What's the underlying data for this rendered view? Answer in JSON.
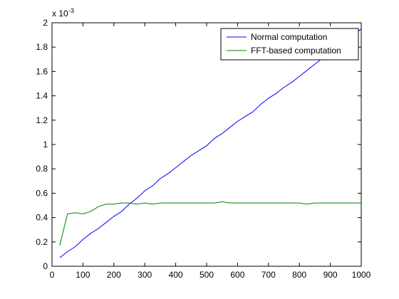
{
  "chart_data": {
    "type": "line",
    "title": "",
    "xlabel": "",
    "ylabel": "",
    "xlim": [
      0,
      1000
    ],
    "ylim": [
      0,
      2
    ],
    "y_multiplier_label": "x 10",
    "y_multiplier_exponent": "-3",
    "x_ticks": [
      0,
      100,
      200,
      300,
      400,
      500,
      600,
      700,
      800,
      900,
      1000
    ],
    "x_tick_labels": [
      "0",
      "100",
      "200",
      "300",
      "400",
      "500",
      "600",
      "700",
      "800",
      "900",
      "1000"
    ],
    "y_ticks": [
      0,
      0.2,
      0.4,
      0.6,
      0.8,
      1,
      1.2,
      1.4,
      1.6,
      1.8,
      2
    ],
    "y_tick_labels": [
      "0",
      "0.2",
      "0.4",
      "0.6",
      "0.8",
      "1",
      "1.2",
      "1.4",
      "1.6",
      "1.8",
      "2"
    ],
    "grid": false,
    "legend_position": "top-right",
    "series": [
      {
        "name": "Normal computation",
        "color": "#0000ff",
        "x": [
          25,
          50,
          75,
          100,
          125,
          150,
          175,
          200,
          225,
          250,
          275,
          300,
          325,
          350,
          375,
          400,
          425,
          450,
          475,
          500,
          525,
          550,
          575,
          600,
          625,
          650,
          675,
          700,
          725,
          750,
          775,
          800,
          825,
          850,
          875,
          900,
          925,
          950,
          975,
          1000
        ],
        "values": [
          0.07,
          0.12,
          0.16,
          0.22,
          0.27,
          0.31,
          0.36,
          0.41,
          0.45,
          0.51,
          0.56,
          0.62,
          0.66,
          0.72,
          0.76,
          0.81,
          0.86,
          0.91,
          0.95,
          0.99,
          1.05,
          1.09,
          1.14,
          1.19,
          1.23,
          1.27,
          1.33,
          1.38,
          1.42,
          1.47,
          1.51,
          1.56,
          1.61,
          1.66,
          1.71,
          1.76,
          1.8,
          1.85,
          1.9,
          1.95
        ]
      },
      {
        "name": "FFT-based computation",
        "color": "#008000",
        "x": [
          25,
          50,
          75,
          100,
          125,
          150,
          175,
          200,
          225,
          250,
          275,
          300,
          325,
          350,
          375,
          400,
          425,
          450,
          475,
          500,
          525,
          550,
          575,
          600,
          625,
          650,
          675,
          700,
          725,
          750,
          775,
          800,
          825,
          850,
          875,
          900,
          925,
          950,
          975,
          1000
        ],
        "values": [
          0.17,
          0.43,
          0.44,
          0.43,
          0.45,
          0.49,
          0.51,
          0.51,
          0.52,
          0.52,
          0.51,
          0.52,
          0.51,
          0.52,
          0.52,
          0.52,
          0.52,
          0.52,
          0.52,
          0.52,
          0.52,
          0.53,
          0.52,
          0.52,
          0.52,
          0.52,
          0.52,
          0.52,
          0.52,
          0.52,
          0.52,
          0.52,
          0.51,
          0.52,
          0.52,
          0.52,
          0.52,
          0.52,
          0.52,
          0.52
        ]
      }
    ]
  }
}
